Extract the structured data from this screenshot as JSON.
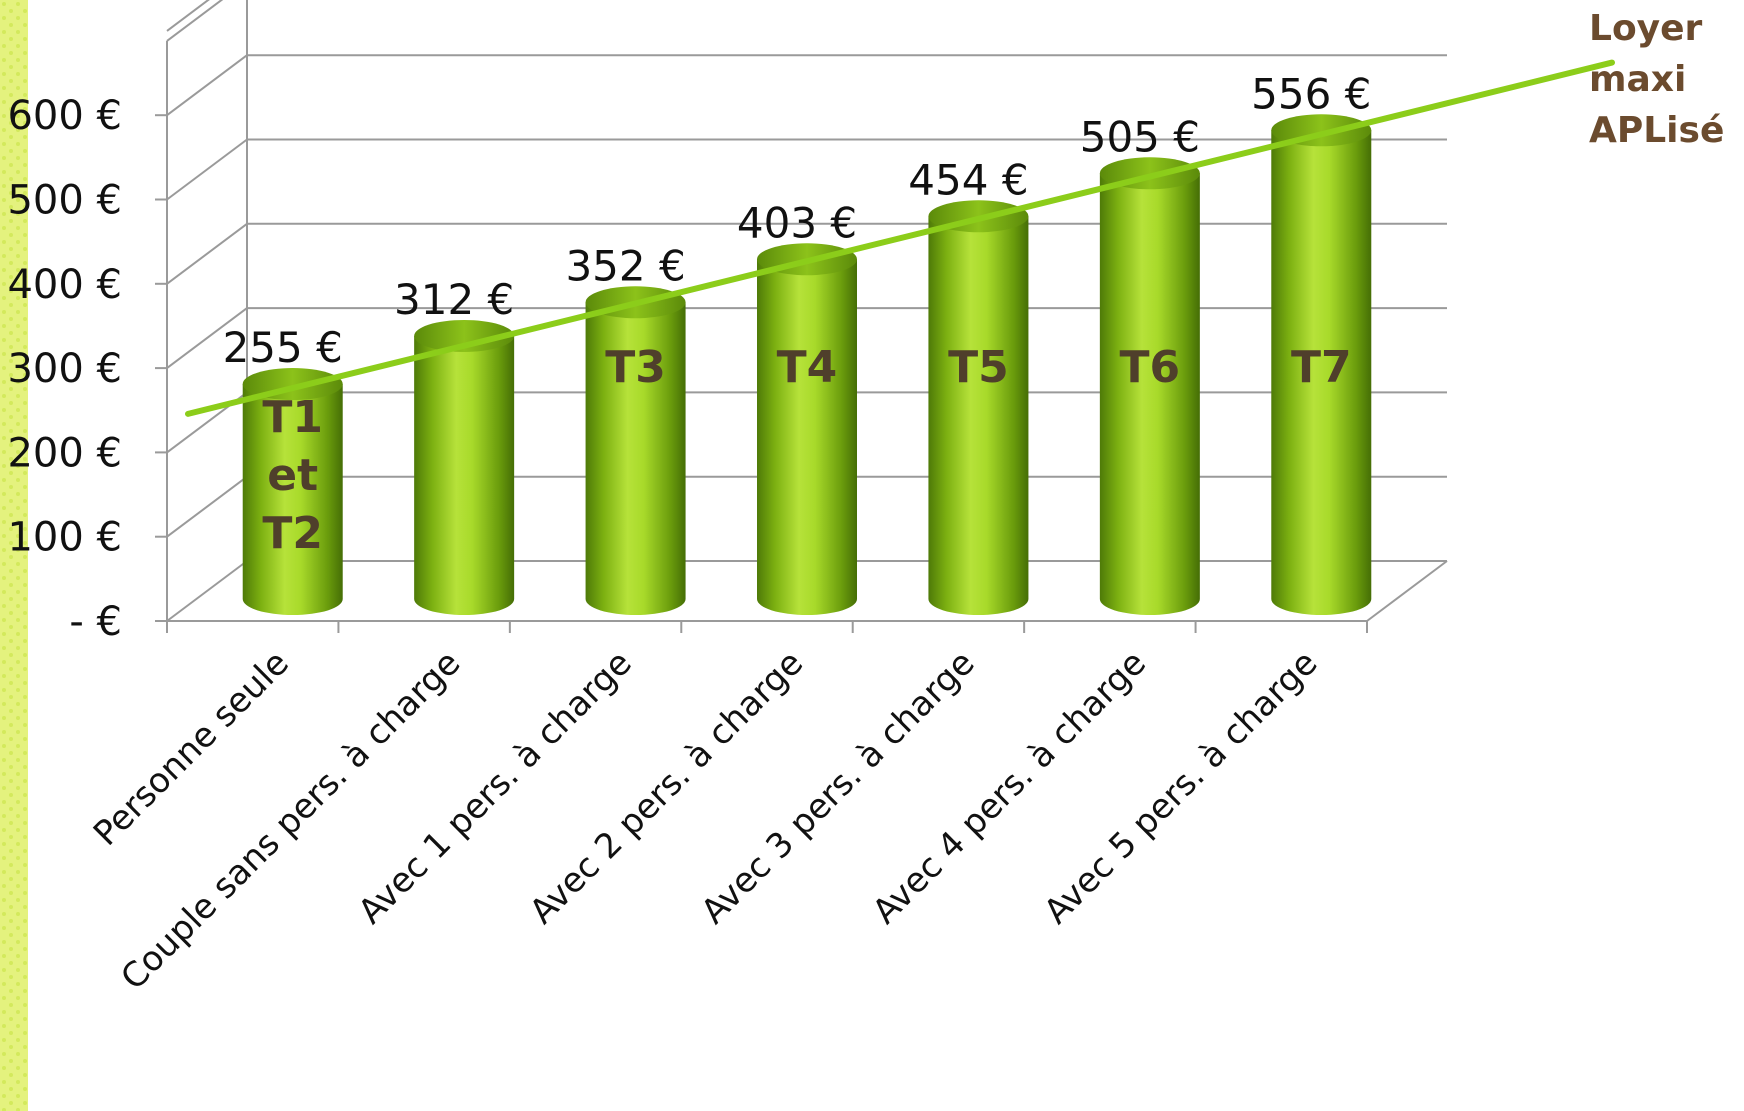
{
  "chart_data": {
    "type": "bar",
    "style": "3d-cylinder",
    "categories": [
      "Personne seule",
      "Couple sans pers. à charge",
      "Avec 1 pers. à charge",
      "Avec 2 pers. à charge",
      "Avec 3 pers. à charge",
      "Avec 4 pers. à charge",
      "Avec 5 pers. à charge"
    ],
    "values": [
      255,
      312,
      352,
      403,
      454,
      505,
      556
    ],
    "data_labels": [
      "255 €",
      "312 €",
      "352 €",
      "403 €",
      "454 €",
      "505 €",
      "556 €"
    ],
    "bar_inner_labels": [
      [
        "T1",
        "et",
        "T2"
      ],
      [],
      [
        "T3"
      ],
      [
        "T4"
      ],
      [
        "T5"
      ],
      [
        "T6"
      ],
      [
        "T7"
      ]
    ],
    "y_tick_labels": [
      "-   €",
      "100 €",
      "200 €",
      "300 €",
      "400 €",
      "500 €",
      "600 €"
    ],
    "y_ticks": [
      0,
      100,
      200,
      300,
      400,
      500,
      600
    ],
    "ylim": [
      0,
      700
    ],
    "grid": true,
    "trend_line": {
      "legend": [
        "Loyer",
        "maxi",
        "APLisé"
      ],
      "color": "#8ccd1a"
    },
    "colors": {
      "bar": "#8cc21a",
      "bar_light": "#c8ec5c",
      "bar_dark": "#4e7a08",
      "grid": "#9a9a9a",
      "stripe": "#e2f07a"
    }
  }
}
